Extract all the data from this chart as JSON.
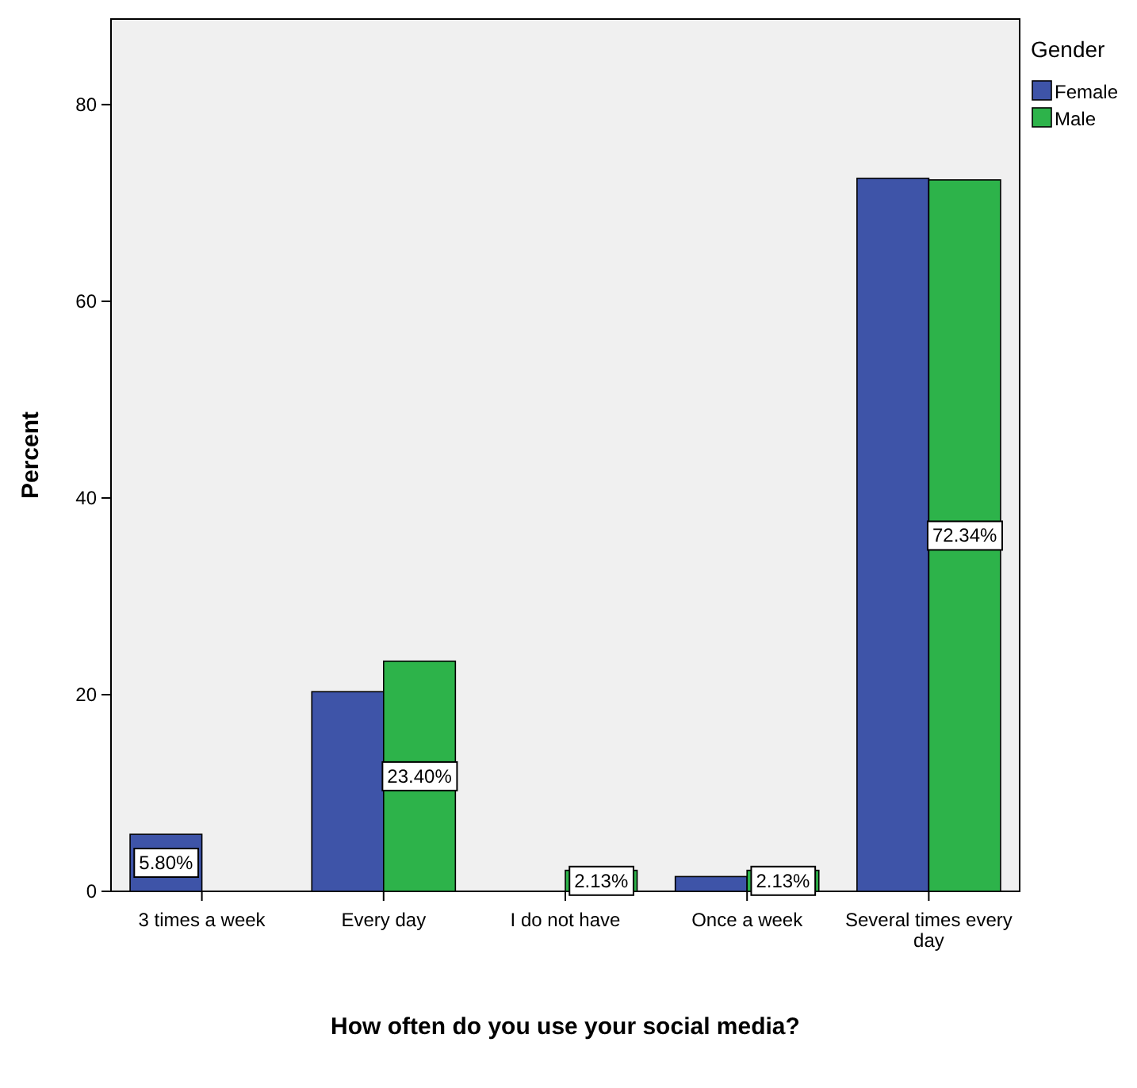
{
  "chart_data": {
    "type": "bar",
    "xlabel": "How often do you use your social media?",
    "ylabel": "Percent",
    "legend_title": "Gender",
    "categories": [
      "3 times a week",
      "Every day",
      "I do not have",
      "Once a week",
      "Several times every day"
    ],
    "series": [
      {
        "name": "Female",
        "color": "#3e54a8",
        "values": [
          5.8,
          20.3,
          0,
          1.5,
          72.5
        ],
        "value_labels": [
          "5.80%",
          null,
          null,
          null,
          null
        ]
      },
      {
        "name": "Male",
        "color": "#2db34a",
        "values": [
          0,
          23.4,
          2.13,
          2.13,
          72.34
        ],
        "value_labels": [
          null,
          "23.40%",
          "2.13%",
          "2.13%",
          "72.34%"
        ]
      }
    ],
    "ylim": [
      0,
      88.7
    ],
    "yticks": [
      0,
      20,
      40,
      60,
      80
    ],
    "grid": false,
    "legend": "top right"
  }
}
